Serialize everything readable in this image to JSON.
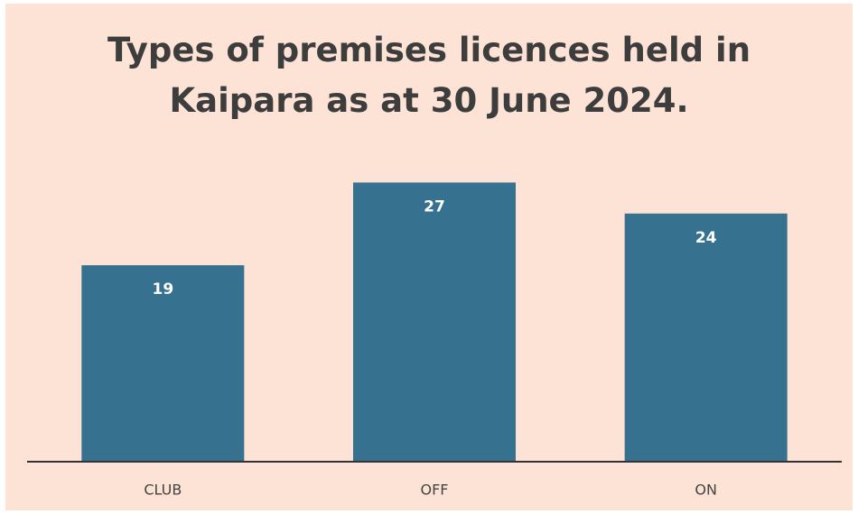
{
  "chart_data": {
    "type": "bar",
    "title": "Types of premises licences held in Kaipara as at 30 June 2024.",
    "categories": [
      "CLUB",
      "OFF",
      "ON"
    ],
    "values": [
      19,
      27,
      24
    ],
    "color": "#36718f",
    "ylim": [
      0,
      30
    ]
  }
}
